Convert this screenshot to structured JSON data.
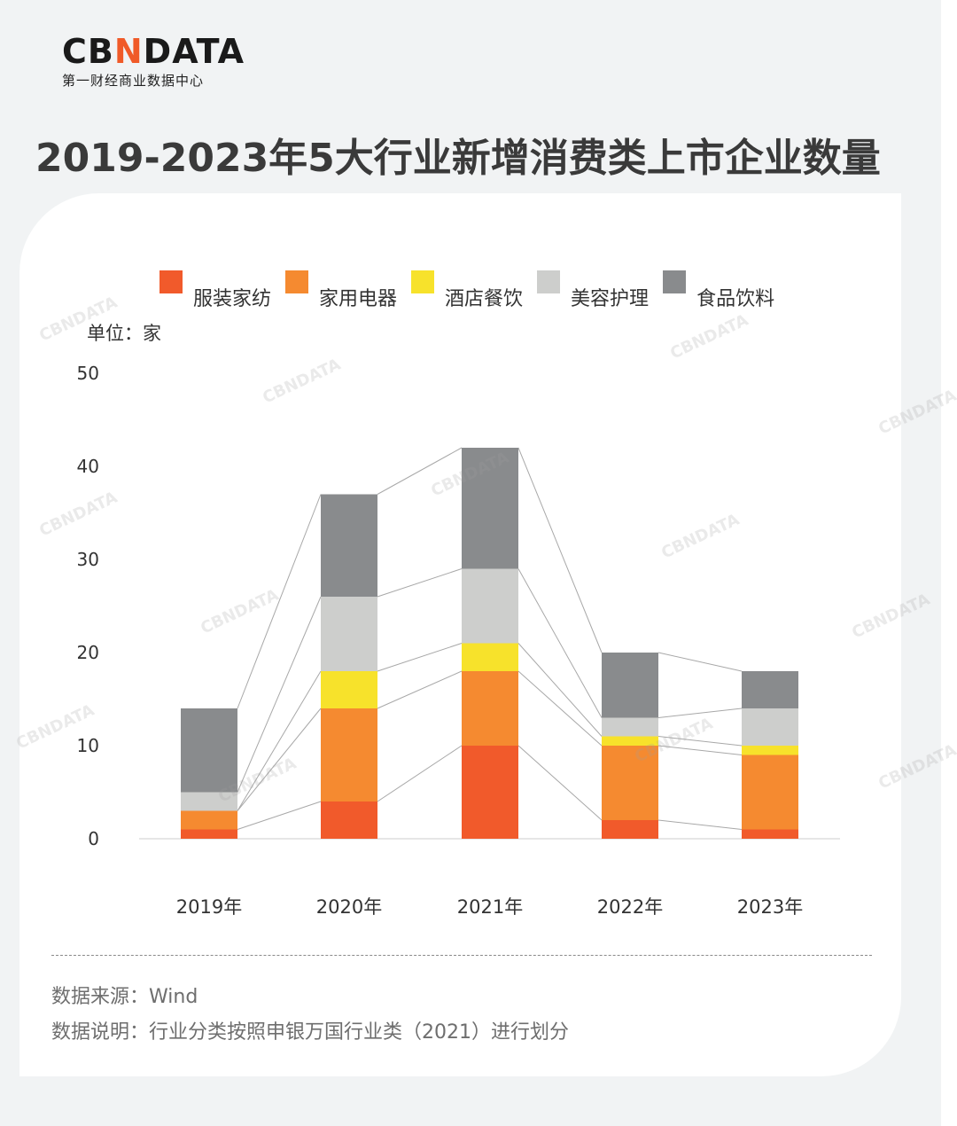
{
  "brand": {
    "name_pre": "CB",
    "name_accent": "N",
    "name_post": "DATA",
    "tagline": "第一财经商业数据中心"
  },
  "title": "2019-2023年5大行业新增消费类上市企业数量",
  "unit": "单位：家",
  "colors": {
    "服装家纺": "#f15a2b",
    "家用电器": "#f58a30",
    "酒店餐饮": "#f7e22b",
    "美容护理": "#cdcecc",
    "食品饮料": "#898b8d"
  },
  "chart_data": {
    "type": "bar",
    "stacked": true,
    "title": "2019-2023年5大行业新增消费类上市企业数量",
    "ylabel": "单位：家",
    "ylim": [
      0,
      50
    ],
    "yticks": [
      0,
      10,
      20,
      30,
      40,
      50
    ],
    "categories": [
      "2019年",
      "2020年",
      "2021年",
      "2022年",
      "2023年"
    ],
    "series": [
      {
        "name": "服装家纺",
        "values": [
          1,
          4,
          10,
          2,
          1
        ]
      },
      {
        "name": "家用电器",
        "values": [
          2,
          10,
          8,
          8,
          8
        ]
      },
      {
        "name": "酒店餐饮",
        "values": [
          0,
          4,
          3,
          1,
          1
        ]
      },
      {
        "name": "美容护理",
        "values": [
          2,
          8,
          8,
          2,
          4
        ]
      },
      {
        "name": "食品饮料",
        "values": [
          9,
          11,
          13,
          7,
          4
        ]
      }
    ],
    "legend": "top"
  },
  "footer": {
    "source": "数据来源：Wind",
    "note": "数据说明：行业分类按照申银万国行业类（2021）进行划分"
  },
  "watermark": "CBNDATA"
}
